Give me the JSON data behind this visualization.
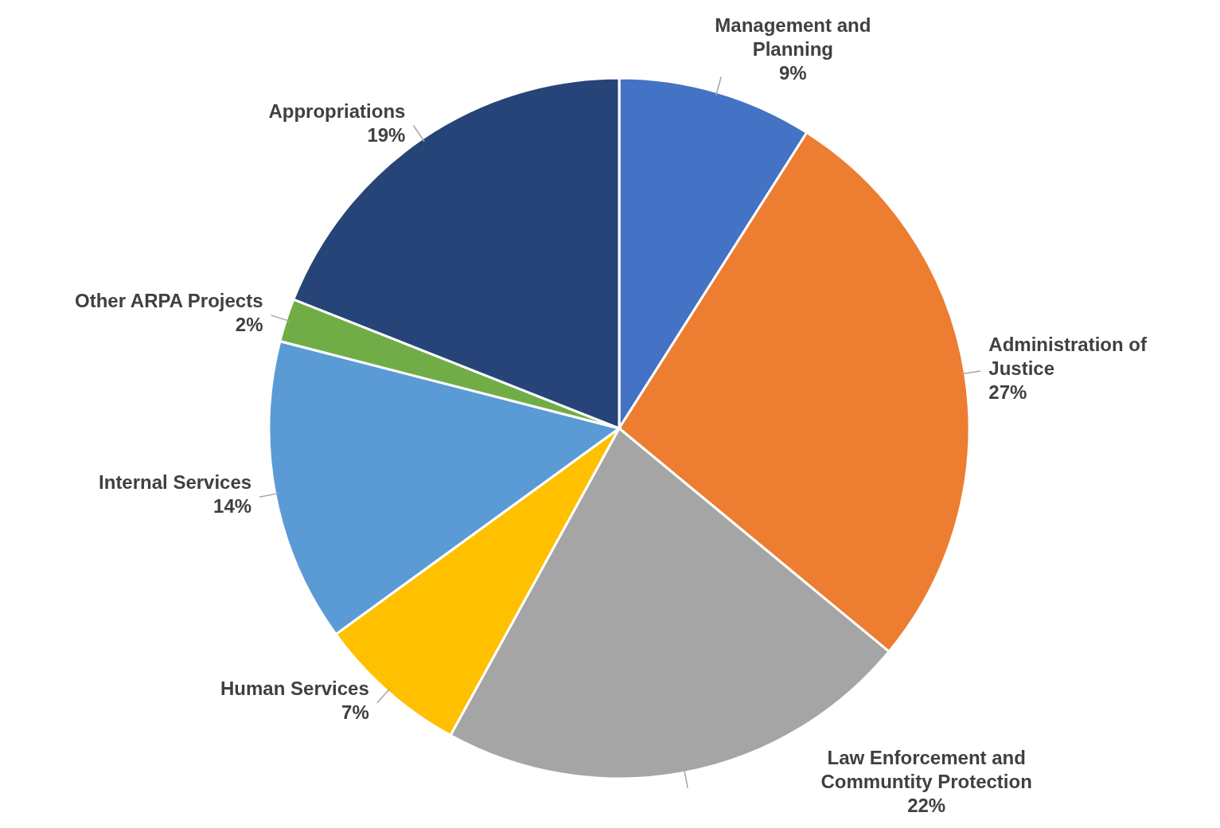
{
  "chart_data": {
    "type": "pie",
    "categories": [
      "Management and Planning",
      "Administration of Justice",
      "Law Enforcement and Communtity Protection",
      "Human Services",
      "Internal Services",
      "Other ARPA Projects",
      "Appropriations"
    ],
    "values": [
      9,
      27,
      22,
      7,
      14,
      2,
      19
    ],
    "colors": [
      "#4472c4",
      "#ed7d31",
      "#a5a5a5",
      "#ffc000",
      "#5b9bd5",
      "#70ad47",
      "#264478"
    ],
    "value_labels": [
      "9%",
      "27%",
      "22%",
      "7%",
      "14%",
      "2%",
      "19%"
    ]
  }
}
